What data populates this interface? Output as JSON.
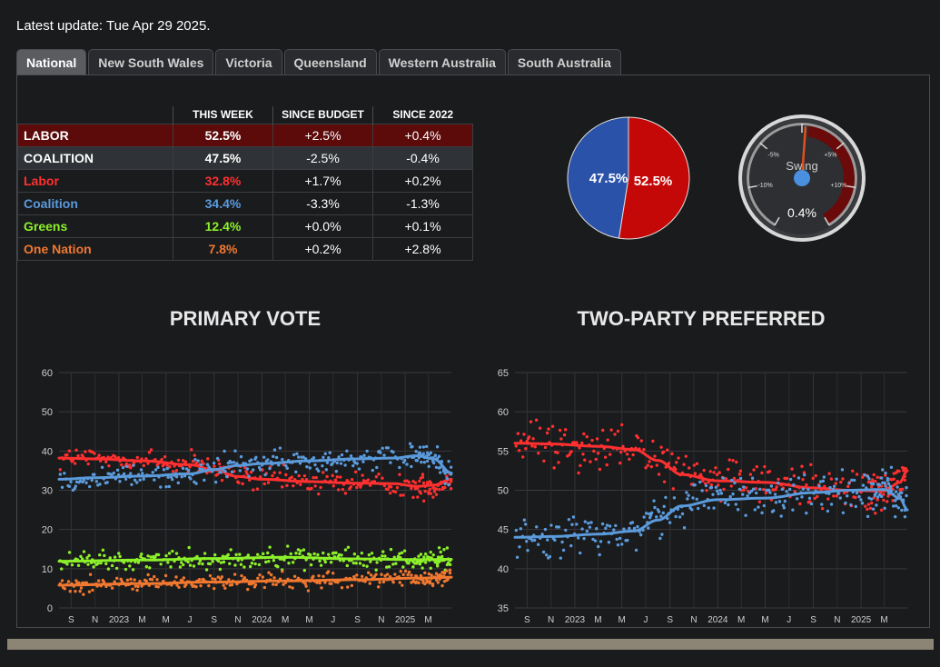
{
  "update_text": "Latest update: Tue Apr 29 2025.",
  "tabs": [
    {
      "label": "National",
      "active": true
    },
    {
      "label": "New South Wales",
      "active": false
    },
    {
      "label": "Victoria",
      "active": false
    },
    {
      "label": "Queensland",
      "active": false
    },
    {
      "label": "Western Australia",
      "active": false
    },
    {
      "label": "South Australia",
      "active": false
    }
  ],
  "table": {
    "headers": [
      "THIS WEEK",
      "SINCE BUDGET",
      "SINCE 2022"
    ],
    "rows": [
      {
        "name": "LABOR",
        "this_week": "52.5%",
        "since_budget": "+2.5%",
        "since_2022": "+0.4%",
        "name_color": "#ffffff",
        "value_color": "#ffffff",
        "bg": "#5c0a0a"
      },
      {
        "name": "COALITION",
        "this_week": "47.5%",
        "since_budget": "-2.5%",
        "since_2022": "-0.4%",
        "name_color": "#ffffff",
        "value_color": "#ffffff",
        "bg": "#2f3236"
      },
      {
        "name": "Labor",
        "this_week": "32.8%",
        "since_budget": "+1.7%",
        "since_2022": "+0.2%",
        "name_color": "#ff3030",
        "value_color": "#ff3030",
        "bg": "#1a1b1d"
      },
      {
        "name": "Coalition",
        "this_week": "34.4%",
        "since_budget": "-3.3%",
        "since_2022": "-1.3%",
        "name_color": "#5b9bdc",
        "value_color": "#5b9bdc",
        "bg": "#1a1b1d"
      },
      {
        "name": "Greens",
        "this_week": "12.4%",
        "since_budget": "+0.0%",
        "since_2022": "+0.1%",
        "name_color": "#8cf02a",
        "value_color": "#8cf02a",
        "bg": "#1a1b1d"
      },
      {
        "name": "One Nation",
        "this_week": "7.8%",
        "since_budget": "+0.2%",
        "since_2022": "+2.8%",
        "name_color": "#f07830",
        "value_color": "#f07830",
        "bg": "#1a1b1d"
      }
    ]
  },
  "pie": {
    "slices": [
      {
        "label": "47.5%",
        "value": 47.5,
        "color": "#2a52a8"
      },
      {
        "label": "52.5%",
        "value": 52.5,
        "color": "#c40808"
      }
    ]
  },
  "gauge": {
    "label": "Swing",
    "value_text": "0.4%",
    "value": 0.4,
    "scale_labels": [
      "-5%",
      "+5%",
      "-10%",
      "+10%"
    ],
    "min": -15,
    "max": 15
  },
  "chart_data": [
    {
      "type": "scatter",
      "title": "PRIMARY VOTE",
      "ylim": [
        0,
        60
      ],
      "yticks": [
        0,
        10,
        20,
        30,
        40,
        50,
        60
      ],
      "xlim": [
        "2022-08-01",
        "2025-04-29"
      ],
      "xticks": [
        {
          "label": "S",
          "date": "2022-09-01"
        },
        {
          "label": "N",
          "date": "2022-11-01"
        },
        {
          "label": "2023",
          "date": "2023-01-01"
        },
        {
          "label": "M",
          "date": "2023-03-01"
        },
        {
          "label": "M",
          "date": "2023-05-01"
        },
        {
          "label": "J",
          "date": "2023-07-01"
        },
        {
          "label": "S",
          "date": "2023-09-01"
        },
        {
          "label": "N",
          "date": "2023-11-01"
        },
        {
          "label": "2024",
          "date": "2024-01-01"
        },
        {
          "label": "M",
          "date": "2024-03-01"
        },
        {
          "label": "M",
          "date": "2024-05-01"
        },
        {
          "label": "J",
          "date": "2024-07-01"
        },
        {
          "label": "S",
          "date": "2024-09-01"
        },
        {
          "label": "N",
          "date": "2024-11-01"
        },
        {
          "label": "2025",
          "date": "2025-01-01"
        },
        {
          "label": "M",
          "date": "2025-03-01"
        }
      ],
      "grid": true,
      "series": [
        {
          "name": "Labor",
          "color": "#ff3030",
          "trend": [
            [
              "2022-08-01",
              38.2
            ],
            [
              "2022-11-01",
              38.0
            ],
            [
              "2023-03-01",
              37.5
            ],
            [
              "2023-07-01",
              36.5
            ],
            [
              "2023-09-01",
              35.2
            ],
            [
              "2023-11-01",
              33.5
            ],
            [
              "2024-01-01",
              32.8
            ],
            [
              "2024-05-01",
              32.2
            ],
            [
              "2024-09-01",
              31.8
            ],
            [
              "2024-12-01",
              31.7
            ],
            [
              "2025-02-01",
              31.0
            ],
            [
              "2025-03-15",
              31.3
            ],
            [
              "2025-04-29",
              32.8
            ]
          ],
          "noise": 1.6
        },
        {
          "name": "Coalition",
          "color": "#5b9bdc",
          "trend": [
            [
              "2022-08-01",
              32.8
            ],
            [
              "2022-11-01",
              33.2
            ],
            [
              "2023-03-01",
              33.6
            ],
            [
              "2023-07-01",
              34.2
            ],
            [
              "2023-09-01",
              35.3
            ],
            [
              "2023-11-01",
              36.3
            ],
            [
              "2024-01-01",
              36.8
            ],
            [
              "2024-05-01",
              37.5
            ],
            [
              "2024-09-01",
              38.0
            ],
            [
              "2024-12-01",
              38.2
            ],
            [
              "2025-02-01",
              38.8
            ],
            [
              "2025-03-15",
              38.0
            ],
            [
              "2025-04-29",
              34.4
            ]
          ],
          "noise": 1.6
        },
        {
          "name": "Greens",
          "color": "#8cf02a",
          "trend": [
            [
              "2022-08-01",
              11.9
            ],
            [
              "2023-03-01",
              12.2
            ],
            [
              "2023-09-01",
              12.6
            ],
            [
              "2024-03-01",
              12.9
            ],
            [
              "2024-09-01",
              12.5
            ],
            [
              "2025-02-01",
              12.3
            ],
            [
              "2025-04-29",
              12.4
            ]
          ],
          "noise": 1.3
        },
        {
          "name": "One Nation",
          "color": "#f07830",
          "trend": [
            [
              "2022-08-01",
              5.8
            ],
            [
              "2023-03-01",
              6.2
            ],
            [
              "2023-09-01",
              6.6
            ],
            [
              "2024-03-01",
              6.9
            ],
            [
              "2024-09-01",
              7.2
            ],
            [
              "2025-02-01",
              7.6
            ],
            [
              "2025-04-29",
              7.8
            ]
          ],
          "noise": 1.0
        }
      ]
    },
    {
      "type": "scatter",
      "title": "TWO-PARTY PREFERRED",
      "ylim": [
        35,
        65
      ],
      "yticks": [
        35,
        40,
        45,
        50,
        55,
        60,
        65
      ],
      "xlim": [
        "2022-08-01",
        "2025-04-29"
      ],
      "xticks": [
        {
          "label": "S",
          "date": "2022-09-01"
        },
        {
          "label": "N",
          "date": "2022-11-01"
        },
        {
          "label": "2023",
          "date": "2023-01-01"
        },
        {
          "label": "M",
          "date": "2023-03-01"
        },
        {
          "label": "M",
          "date": "2023-05-01"
        },
        {
          "label": "J",
          "date": "2023-07-01"
        },
        {
          "label": "S",
          "date": "2023-09-01"
        },
        {
          "label": "N",
          "date": "2023-11-01"
        },
        {
          "label": "2024",
          "date": "2024-01-01"
        },
        {
          "label": "M",
          "date": "2024-03-01"
        },
        {
          "label": "M",
          "date": "2024-05-01"
        },
        {
          "label": "J",
          "date": "2024-07-01"
        },
        {
          "label": "S",
          "date": "2024-09-01"
        },
        {
          "label": "N",
          "date": "2024-11-01"
        },
        {
          "label": "2025",
          "date": "2025-01-01"
        },
        {
          "label": "M",
          "date": "2025-03-01"
        }
      ],
      "grid": true,
      "series": [
        {
          "name": "Labor",
          "color": "#ff3030",
          "trend": [
            [
              "2022-08-01",
              56.0
            ],
            [
              "2022-11-01",
              55.9
            ],
            [
              "2023-03-01",
              55.6
            ],
            [
              "2023-06-01",
              55.2
            ],
            [
              "2023-08-01",
              53.8
            ],
            [
              "2023-10-01",
              52.0
            ],
            [
              "2024-01-01",
              51.2
            ],
            [
              "2024-05-01",
              51.0
            ],
            [
              "2024-09-01",
              50.3
            ],
            [
              "2024-12-01",
              50.0
            ],
            [
              "2025-03-01",
              49.9
            ],
            [
              "2025-04-10",
              51.0
            ],
            [
              "2025-04-29",
              52.5
            ]
          ],
          "noise": 1.4
        },
        {
          "name": "Coalition",
          "color": "#5b9bdc",
          "trend": [
            [
              "2022-08-01",
              44.0
            ],
            [
              "2022-11-01",
              44.1
            ],
            [
              "2023-03-01",
              44.4
            ],
            [
              "2023-06-01",
              44.8
            ],
            [
              "2023-08-01",
              46.2
            ],
            [
              "2023-10-01",
              48.0
            ],
            [
              "2024-01-01",
              48.8
            ],
            [
              "2024-05-01",
              49.0
            ],
            [
              "2024-09-01",
              49.7
            ],
            [
              "2024-12-01",
              50.0
            ],
            [
              "2025-03-01",
              50.1
            ],
            [
              "2025-04-10",
              49.0
            ],
            [
              "2025-04-29",
              47.5
            ]
          ],
          "noise": 1.4
        }
      ]
    }
  ]
}
